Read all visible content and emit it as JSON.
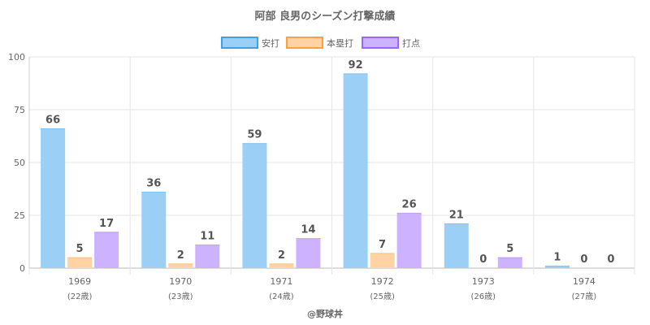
{
  "chart_data": {
    "type": "bar",
    "title": "阿部 良男のシーズン打撃成績",
    "categories": [
      "1969",
      "1970",
      "1971",
      "1972",
      "1973",
      "1974"
    ],
    "category_sublabels": [
      "(22歳)",
      "(23歳)",
      "(24歳)",
      "(25歳)",
      "(26歳)",
      "(27歳)"
    ],
    "series": [
      {
        "name": "安打",
        "values": [
          66,
          36,
          59,
          92,
          21,
          1
        ],
        "fill": "#9ccff5",
        "stroke": "#3ea0e6"
      },
      {
        "name": "本塁打",
        "values": [
          5,
          2,
          2,
          7,
          0,
          0
        ],
        "fill": "#ffd3a3",
        "stroke": "#ff9f40"
      },
      {
        "name": "打点",
        "values": [
          17,
          11,
          14,
          26,
          5,
          0
        ],
        "fill": "#cdb3ff",
        "stroke": "#9966ff"
      }
    ],
    "y_ticks": [
      "0",
      "25",
      "50",
      "75",
      "100"
    ],
    "ylim": [
      0,
      100
    ],
    "legend_position": "top-center",
    "grid": true
  },
  "credit": "@野球丼"
}
